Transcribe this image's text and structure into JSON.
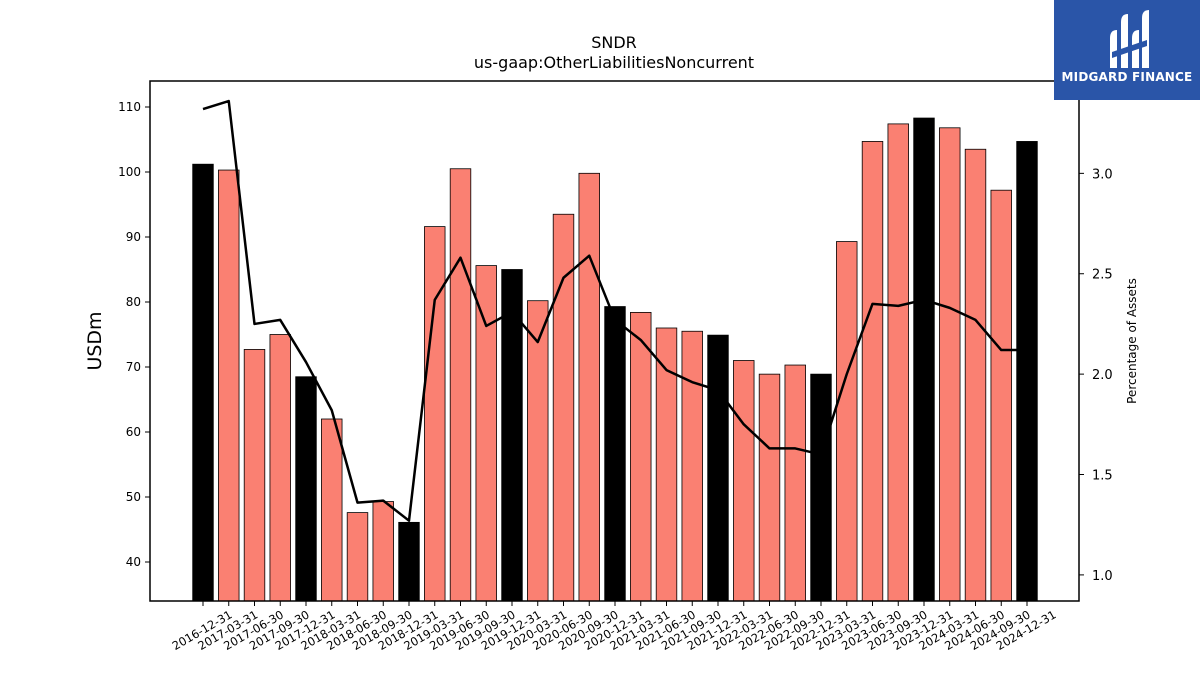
{
  "brand": {
    "name": "MIDGARD FINANCE",
    "bg": "#2a55a8"
  },
  "chart_data": {
    "type": "bar",
    "title": "SNDR",
    "subtitle": "us-gaap:OtherLiabilitiesNoncurrent",
    "ylabel": "USDm",
    "y2label": "Percentage of Assets",
    "ylim": [
      34,
      114
    ],
    "y2lim": [
      0.87,
      3.46
    ],
    "yticks": [
      40,
      50,
      60,
      70,
      80,
      90,
      100,
      110
    ],
    "y2ticks": [
      "1.0",
      "1.5",
      "2.0",
      "2.5",
      "3.0"
    ],
    "colors": {
      "quarter_bar": "#fa8072",
      "year_end_bar": "#000000",
      "line": "#000000"
    },
    "categories": [
      "2016-12-31",
      "2017-03-31",
      "2017-06-30",
      "2017-09-30",
      "2017-12-31",
      "2018-03-31",
      "2018-06-30",
      "2018-09-30",
      "2018-12-31",
      "2019-03-31",
      "2019-06-30",
      "2019-09-30",
      "2019-12-31",
      "2020-03-31",
      "2020-06-30",
      "2020-09-30",
      "2020-12-31",
      "2021-03-31",
      "2021-06-30",
      "2021-09-30",
      "2021-12-31",
      "2022-03-31",
      "2022-06-30",
      "2022-09-30",
      "2022-12-31",
      "2023-03-31",
      "2023-06-30",
      "2023-09-30",
      "2023-12-31",
      "2024-03-31",
      "2024-06-30",
      "2024-09-30",
      "2024-12-31"
    ],
    "series": [
      {
        "values": [
          101.2,
          100.3,
          72.7,
          75.0,
          68.5,
          62.0,
          47.6,
          49.3,
          46.1,
          91.6,
          100.5,
          85.6,
          85.0,
          80.2,
          93.5,
          99.8,
          79.3,
          78.4,
          76.0,
          75.5,
          74.9,
          71.0,
          68.9,
          70.3,
          68.9,
          89.3,
          104.7,
          107.4,
          108.3,
          106.8,
          103.5,
          97.2,
          104.7
        ]
      },
      {
        "axis": "right",
        "values": [
          3.32,
          3.36,
          2.25,
          2.27,
          2.06,
          1.82,
          1.36,
          1.37,
          1.27,
          2.37,
          2.58,
          2.24,
          2.31,
          2.16,
          2.48,
          2.59,
          2.27,
          2.17,
          2.02,
          1.96,
          1.92,
          1.75,
          1.63,
          1.63,
          1.6,
          2.0,
          2.35,
          2.34,
          2.37,
          2.33,
          2.27,
          2.12,
          2.12
        ]
      }
    ],
    "grid": false
  }
}
